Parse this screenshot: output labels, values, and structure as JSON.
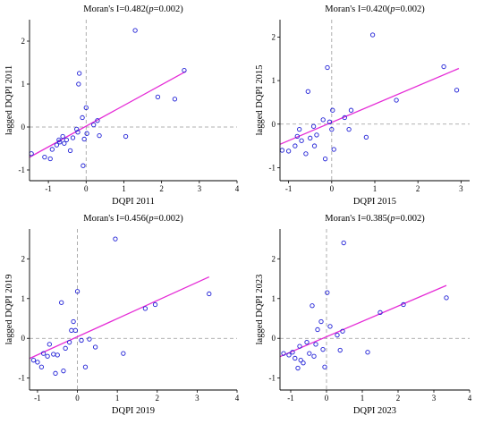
{
  "chart_data": [
    {
      "type": "scatter",
      "title_prefix": "Moran's I=0.482(",
      "title_p": "p",
      "title_suffix": "=0.002)",
      "xlabel": "DQPI 2011",
      "ylabel": "lagged DQPI 2011",
      "xlim": [
        -1.5,
        4
      ],
      "ylim": [
        -1.25,
        2.5
      ],
      "xticks": [
        -1,
        0,
        1,
        2,
        3,
        4
      ],
      "yticks": [
        -1,
        0,
        1,
        2
      ],
      "points": [
        {
          "x": -1.45,
          "y": -0.62
        },
        {
          "x": -1.1,
          "y": -0.7
        },
        {
          "x": -0.95,
          "y": -0.74
        },
        {
          "x": -0.9,
          "y": -0.52
        },
        {
          "x": -0.78,
          "y": -0.42
        },
        {
          "x": -0.7,
          "y": -0.35
        },
        {
          "x": -0.72,
          "y": -0.3
        },
        {
          "x": -0.62,
          "y": -0.22
        },
        {
          "x": -0.58,
          "y": -0.38
        },
        {
          "x": -0.52,
          "y": -0.3
        },
        {
          "x": -0.42,
          "y": -0.55
        },
        {
          "x": -0.35,
          "y": -0.25
        },
        {
          "x": -0.25,
          "y": -0.05
        },
        {
          "x": -0.22,
          "y": -0.12
        },
        {
          "x": -0.2,
          "y": 1.0
        },
        {
          "x": -0.18,
          "y": 1.25
        },
        {
          "x": -0.1,
          "y": 0.22
        },
        {
          "x": -0.08,
          "y": -0.9
        },
        {
          "x": -0.05,
          "y": -0.28
        },
        {
          "x": 0.0,
          "y": 0.45
        },
        {
          "x": 0.02,
          "y": -0.15
        },
        {
          "x": 0.2,
          "y": 0.05
        },
        {
          "x": 0.3,
          "y": 0.15
        },
        {
          "x": 0.35,
          "y": -0.2
        },
        {
          "x": 1.05,
          "y": -0.22
        },
        {
          "x": 1.3,
          "y": 2.25
        },
        {
          "x": 1.9,
          "y": 0.7
        },
        {
          "x": 2.35,
          "y": 0.65
        },
        {
          "x": 2.6,
          "y": 1.32
        }
      ],
      "fit": {
        "slope": 0.482,
        "intercept": 0.02,
        "x_range": [
          -1.5,
          2.65
        ]
      },
      "reference_lines": {
        "x": 0,
        "y": 0
      }
    },
    {
      "type": "scatter",
      "title_prefix": "Moran's I=0.420(",
      "title_p": "p",
      "title_suffix": "=0.002)",
      "xlabel": "DQPI 2015",
      "ylabel": "lagged DQPI 2015",
      "xlim": [
        -1.2,
        3.2
      ],
      "ylim": [
        -1.3,
        2.4
      ],
      "xticks": [
        -1,
        0,
        1,
        2,
        3
      ],
      "yticks": [
        -1,
        0,
        1,
        2
      ],
      "points": [
        {
          "x": -1.15,
          "y": -0.6
        },
        {
          "x": -1.0,
          "y": -0.62
        },
        {
          "x": -0.85,
          "y": -0.5
        },
        {
          "x": -0.8,
          "y": -0.28
        },
        {
          "x": -0.75,
          "y": -0.12
        },
        {
          "x": -0.7,
          "y": -0.38
        },
        {
          "x": -0.6,
          "y": -0.68
        },
        {
          "x": -0.55,
          "y": 0.75
        },
        {
          "x": -0.5,
          "y": -0.32
        },
        {
          "x": -0.42,
          "y": -0.05
        },
        {
          "x": -0.4,
          "y": -0.5
        },
        {
          "x": -0.35,
          "y": -0.25
        },
        {
          "x": -0.2,
          "y": 0.1
        },
        {
          "x": -0.15,
          "y": -0.8
        },
        {
          "x": -0.1,
          "y": 1.3
        },
        {
          "x": -0.05,
          "y": 0.05
        },
        {
          "x": 0.0,
          "y": -0.12
        },
        {
          "x": 0.02,
          "y": 0.32
        },
        {
          "x": 0.05,
          "y": -0.58
        },
        {
          "x": 0.3,
          "y": 0.15
        },
        {
          "x": 0.4,
          "y": -0.12
        },
        {
          "x": 0.45,
          "y": 0.32
        },
        {
          "x": 0.8,
          "y": -0.3
        },
        {
          "x": 0.95,
          "y": 2.05
        },
        {
          "x": 1.5,
          "y": 0.55
        },
        {
          "x": 2.6,
          "y": 1.32
        },
        {
          "x": 2.9,
          "y": 0.78
        }
      ],
      "fit": {
        "slope": 0.42,
        "intercept": 0.04,
        "x_range": [
          -1.2,
          2.95
        ]
      },
      "reference_lines": {
        "x": 0,
        "y": 0
      }
    },
    {
      "type": "scatter",
      "title_prefix": "Moran's I=0.456(",
      "title_p": "p",
      "title_suffix": "=0.002)",
      "xlabel": "DQPI 2019",
      "ylabel": "lagged DQPI 2019",
      "xlim": [
        -1.2,
        4
      ],
      "ylim": [
        -1.3,
        2.75
      ],
      "xticks": [
        -1,
        0,
        1,
        2,
        3,
        4
      ],
      "yticks": [
        -1,
        0,
        1,
        2
      ],
      "points": [
        {
          "x": -1.1,
          "y": -0.55
        },
        {
          "x": -1.0,
          "y": -0.6
        },
        {
          "x": -0.9,
          "y": -0.72
        },
        {
          "x": -0.85,
          "y": -0.38
        },
        {
          "x": -0.75,
          "y": -0.45
        },
        {
          "x": -0.7,
          "y": -0.15
        },
        {
          "x": -0.6,
          "y": -0.4
        },
        {
          "x": -0.55,
          "y": -0.88
        },
        {
          "x": -0.5,
          "y": -0.42
        },
        {
          "x": -0.4,
          "y": 0.9
        },
        {
          "x": -0.35,
          "y": -0.82
        },
        {
          "x": -0.3,
          "y": -0.25
        },
        {
          "x": -0.2,
          "y": -0.1
        },
        {
          "x": -0.15,
          "y": 0.2
        },
        {
          "x": -0.1,
          "y": 0.42
        },
        {
          "x": -0.05,
          "y": 0.2
        },
        {
          "x": 0.0,
          "y": 1.18
        },
        {
          "x": 0.1,
          "y": -0.05
        },
        {
          "x": 0.2,
          "y": -0.72
        },
        {
          "x": 0.3,
          "y": -0.02
        },
        {
          "x": 0.45,
          "y": -0.22
        },
        {
          "x": 0.95,
          "y": 2.5
        },
        {
          "x": 1.15,
          "y": -0.38
        },
        {
          "x": 1.7,
          "y": 0.75
        },
        {
          "x": 1.95,
          "y": 0.85
        },
        {
          "x": 3.3,
          "y": 1.12
        }
      ],
      "fit": {
        "slope": 0.456,
        "intercept": 0.04,
        "x_range": [
          -1.2,
          3.3
        ]
      },
      "reference_lines": {
        "x": 0,
        "y": 0
      }
    },
    {
      "type": "scatter",
      "title_prefix": "Moran's I=0.385(",
      "title_p": "p",
      "title_suffix": "=0.002)",
      "xlabel": "DQPI 2023",
      "ylabel": "lagged DQPI 2023",
      "xlim": [
        -1.3,
        4
      ],
      "ylim": [
        -1.3,
        2.75
      ],
      "xticks": [
        -1,
        0,
        1,
        2,
        3,
        4
      ],
      "yticks": [
        -1,
        0,
        1,
        2
      ],
      "points": [
        {
          "x": -1.2,
          "y": -0.38
        },
        {
          "x": -1.05,
          "y": -0.42
        },
        {
          "x": -0.95,
          "y": -0.35
        },
        {
          "x": -0.88,
          "y": -0.5
        },
        {
          "x": -0.8,
          "y": -0.75
        },
        {
          "x": -0.75,
          "y": -0.2
        },
        {
          "x": -0.72,
          "y": -0.55
        },
        {
          "x": -0.65,
          "y": -0.62
        },
        {
          "x": -0.55,
          "y": -0.1
        },
        {
          "x": -0.48,
          "y": -0.38
        },
        {
          "x": -0.4,
          "y": 0.82
        },
        {
          "x": -0.35,
          "y": -0.45
        },
        {
          "x": -0.3,
          "y": -0.15
        },
        {
          "x": -0.25,
          "y": 0.22
        },
        {
          "x": -0.15,
          "y": 0.42
        },
        {
          "x": -0.1,
          "y": -0.28
        },
        {
          "x": -0.05,
          "y": -0.72
        },
        {
          "x": 0.02,
          "y": 1.15
        },
        {
          "x": 0.1,
          "y": 0.3
        },
        {
          "x": 0.3,
          "y": 0.08
        },
        {
          "x": 0.38,
          "y": -0.3
        },
        {
          "x": 0.45,
          "y": 0.18
        },
        {
          "x": 0.48,
          "y": 2.4
        },
        {
          "x": 1.15,
          "y": -0.35
        },
        {
          "x": 1.5,
          "y": 0.65
        },
        {
          "x": 2.15,
          "y": 0.85
        },
        {
          "x": 3.35,
          "y": 1.02
        }
      ],
      "fit": {
        "slope": 0.385,
        "intercept": 0.04,
        "x_range": [
          -1.3,
          3.35
        ]
      },
      "reference_lines": {
        "x": 0,
        "y": 0
      }
    }
  ],
  "colors": {
    "points": "#1f1fd6",
    "fit": "#e52bd6",
    "reference": "#999999",
    "axis": "#000000"
  }
}
